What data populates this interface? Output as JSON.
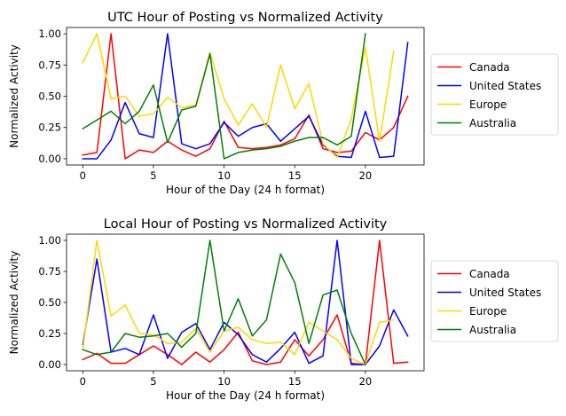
{
  "chart_data": [
    {
      "type": "line",
      "title": "UTC Hour of Posting vs Normalized Activity",
      "xlabel": "Hour of the Day (24 h format)",
      "ylabel": "Normalized Activity",
      "xlim": [
        -1.15,
        24.15
      ],
      "ylim": [
        -0.05,
        1.05
      ],
      "xticks": [
        0,
        5,
        10,
        15,
        20
      ],
      "yticks": [
        0.0,
        0.25,
        0.5,
        0.75,
        1.0
      ],
      "xtick_labels": [
        "0",
        "5",
        "10",
        "15",
        "20"
      ],
      "ytick_labels": [
        "0.00",
        "0.25",
        "0.50",
        "0.75",
        "1.00"
      ],
      "grid": false,
      "legend_position": "outside-right",
      "series": [
        {
          "name": "Canada",
          "color": "#ff0000",
          "x": [
            0,
            1,
            2,
            3,
            4,
            5,
            6,
            7,
            8,
            9,
            10,
            11,
            12,
            13,
            14,
            15,
            16,
            17,
            18,
            19,
            20,
            21,
            22,
            23
          ],
          "values": [
            0.03,
            0.05,
            1.0,
            0.0,
            0.07,
            0.05,
            0.14,
            0.07,
            0.02,
            0.08,
            0.3,
            0.09,
            0.08,
            0.09,
            0.11,
            0.16,
            0.35,
            0.08,
            0.05,
            0.06,
            0.21,
            0.15,
            0.25,
            0.5
          ]
        },
        {
          "name": "United States",
          "color": "#0000ff",
          "x": [
            0,
            1,
            2,
            3,
            4,
            5,
            6,
            7,
            8,
            9,
            10,
            11,
            12,
            13,
            14,
            15,
            16,
            17,
            18,
            19,
            20,
            21,
            22,
            23
          ],
          "values": [
            0.0,
            0.0,
            0.15,
            0.45,
            0.2,
            0.17,
            1.0,
            0.12,
            0.08,
            0.12,
            0.29,
            0.18,
            0.25,
            0.28,
            0.14,
            0.24,
            0.34,
            0.11,
            0.02,
            0.01,
            0.38,
            0.01,
            0.02,
            0.93
          ]
        },
        {
          "name": "Europe",
          "color": "#ffd700",
          "x": [
            0,
            1,
            2,
            3,
            4,
            5,
            6,
            7,
            8,
            9,
            10,
            11,
            12,
            13,
            14,
            15,
            16,
            17,
            18,
            19,
            20,
            21,
            22
          ],
          "values": [
            0.77,
            1.0,
            0.48,
            0.5,
            0.34,
            0.36,
            0.49,
            0.41,
            0.43,
            0.85,
            0.48,
            0.27,
            0.44,
            0.25,
            0.75,
            0.4,
            0.6,
            0.12,
            0.01,
            0.32,
            0.89,
            0.14,
            0.86
          ]
        },
        {
          "name": "Australia",
          "color": "#008000",
          "x": [
            0,
            1,
            2,
            3,
            4,
            5,
            6,
            7,
            8,
            9,
            10,
            11,
            12,
            13,
            14,
            15,
            16,
            17,
            18,
            19,
            20
          ],
          "values": [
            0.24,
            0.31,
            0.38,
            0.28,
            0.38,
            0.59,
            0.13,
            0.39,
            0.42,
            0.84,
            0.0,
            0.05,
            0.07,
            0.08,
            0.1,
            0.14,
            0.17,
            0.17,
            0.11,
            0.18,
            1.0
          ]
        }
      ]
    },
    {
      "type": "line",
      "title": "Local Hour of Posting vs Normalized Activity",
      "xlabel": "Hour of the Day (24 h format)",
      "ylabel": "Normalized Activity",
      "xlim": [
        -1.15,
        24.15
      ],
      "ylim": [
        -0.05,
        1.05
      ],
      "xticks": [
        0,
        5,
        10,
        15,
        20
      ],
      "yticks": [
        0.0,
        0.25,
        0.5,
        0.75,
        1.0
      ],
      "xtick_labels": [
        "0",
        "5",
        "10",
        "15",
        "20"
      ],
      "ytick_labels": [
        "0.00",
        "0.25",
        "0.50",
        "0.75",
        "1.00"
      ],
      "grid": false,
      "legend_position": "outside-right",
      "series": [
        {
          "name": "Canada",
          "color": "#ff0000",
          "x": [
            0,
            1,
            2,
            3,
            4,
            5,
            6,
            7,
            8,
            9,
            10,
            11,
            12,
            13,
            14,
            15,
            16,
            17,
            18,
            19,
            20,
            21,
            22,
            23
          ],
          "values": [
            0.04,
            0.09,
            0.01,
            0.01,
            0.08,
            0.15,
            0.08,
            0.0,
            0.1,
            0.02,
            0.12,
            0.26,
            0.03,
            0.0,
            0.02,
            0.2,
            0.07,
            0.2,
            0.4,
            0.01,
            0.0,
            1.0,
            0.01,
            0.02
          ]
        },
        {
          "name": "United States",
          "color": "#0000ff",
          "x": [
            0,
            1,
            2,
            3,
            4,
            5,
            6,
            7,
            8,
            9,
            10,
            11,
            12,
            13,
            14,
            15,
            16,
            17,
            18,
            19,
            20,
            21,
            22,
            23
          ],
          "values": [
            0.16,
            0.85,
            0.1,
            0.13,
            0.08,
            0.4,
            0.05,
            0.26,
            0.33,
            0.12,
            0.34,
            0.24,
            0.08,
            0.02,
            0.13,
            0.26,
            0.01,
            0.07,
            1.0,
            0.0,
            0.0,
            0.15,
            0.44,
            0.23
          ]
        },
        {
          "name": "Europe",
          "color": "#ffd700",
          "x": [
            0,
            1,
            2,
            3,
            4,
            5,
            6,
            7,
            8,
            9,
            10,
            11,
            12,
            13,
            14,
            15,
            16,
            17,
            18,
            19,
            20,
            21,
            22
          ],
          "values": [
            0.12,
            1.0,
            0.39,
            0.48,
            0.25,
            0.24,
            0.17,
            0.18,
            0.29,
            0.1,
            0.27,
            0.3,
            0.2,
            0.17,
            0.18,
            0.08,
            0.34,
            0.27,
            0.2,
            0.05,
            0.0,
            0.34,
            0.36
          ]
        },
        {
          "name": "Australia",
          "color": "#008000",
          "x": [
            0,
            1,
            2,
            3,
            4,
            5,
            6,
            7,
            8,
            9,
            10,
            11,
            12,
            13,
            14,
            15,
            16,
            17,
            18,
            19,
            20
          ],
          "values": [
            0.12,
            0.08,
            0.1,
            0.25,
            0.22,
            0.23,
            0.25,
            0.14,
            0.25,
            1.0,
            0.27,
            0.53,
            0.23,
            0.36,
            0.89,
            0.66,
            0.17,
            0.56,
            0.6,
            0.25,
            0.0
          ]
        }
      ]
    }
  ]
}
